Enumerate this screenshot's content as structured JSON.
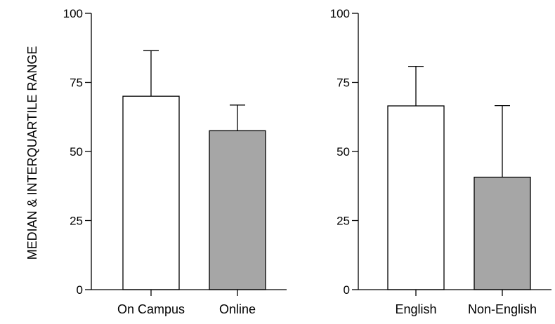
{
  "ylabel": "MEDIAN & INTERQUARTILE RANGE",
  "chart_data": [
    {
      "type": "bar",
      "categories": [
        "On Campus",
        "Online"
      ],
      "values": [
        70,
        57.5
      ],
      "error_upper": [
        86.5,
        66.8
      ],
      "ylim": [
        0,
        100
      ],
      "yticks": [
        0,
        25,
        50,
        75,
        100
      ],
      "ytick_labels": [
        "0",
        "25",
        "50",
        "75",
        "100"
      ],
      "bar_colors": [
        "#ffffff",
        "#a6a6a6"
      ],
      "grid": false
    },
    {
      "type": "bar",
      "categories": [
        "English",
        "Non-English"
      ],
      "values": [
        66.5,
        40.7
      ],
      "error_upper": [
        80.8,
        66.6
      ],
      "ylim": [
        0,
        100
      ],
      "yticks": [
        0,
        25,
        50,
        75,
        100
      ],
      "ytick_labels": [
        "0",
        "25",
        "50",
        "75",
        "100"
      ],
      "bar_colors": [
        "#ffffff",
        "#a6a6a6"
      ],
      "grid": false
    }
  ]
}
